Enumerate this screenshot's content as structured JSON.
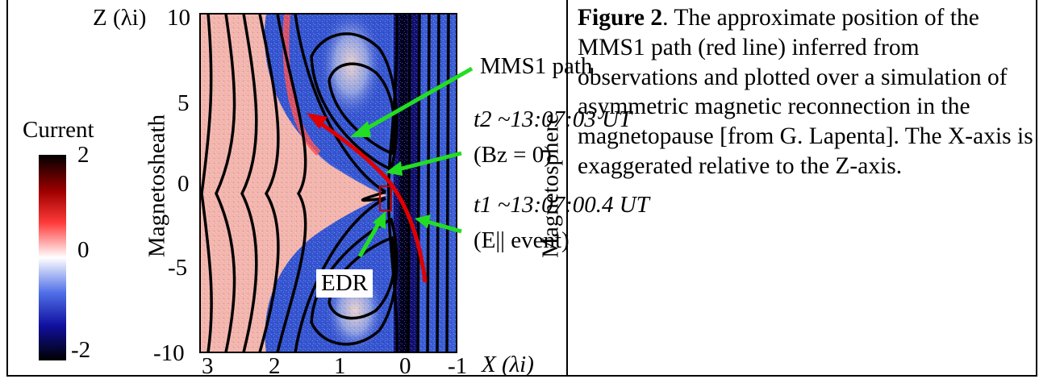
{
  "figure": {
    "axes": {
      "z_label": "Z (λi)",
      "x_label": "X (λi)",
      "z_ticks": [
        "10",
        "5",
        "0",
        "-5",
        "-10"
      ],
      "x_ticks": [
        "3",
        "2",
        "1",
        "0",
        "-1"
      ],
      "left_region": "Magnetosheath",
      "right_region": "Magnetosphere"
    },
    "colorbar": {
      "title": "Current",
      "ticks": [
        "2",
        "0",
        "-2"
      ],
      "colors": [
        "#000000",
        "#b00000",
        "#ff3030",
        "#ffffff",
        "#4060e0",
        "#1010a0",
        "#000000"
      ]
    },
    "annotations": {
      "path_label": "MMS1 path",
      "t2_time": "t2 ~13:07:03 UT",
      "t2_condition": "(Bz = 0)",
      "t1_time": "t1 ~13:07:00.4 UT",
      "t1_condition": "(E|| event)",
      "edr_label": "EDR"
    },
    "colors": {
      "path": "#e00000",
      "arrows": "#22dd22",
      "field_lines": "#000000",
      "positive_current": "#f0a8a0",
      "negative_current": "#3050d0"
    }
  },
  "caption": {
    "label": "Figure 2",
    "text": ". The approximate position of the MMS1 path (red line) inferred from observations and plotted over a simulation of asymmetric magnetic reconnection in the magnetopause [from G. Lapenta]. The X-axis is exaggerated relative to the Z-axis."
  }
}
